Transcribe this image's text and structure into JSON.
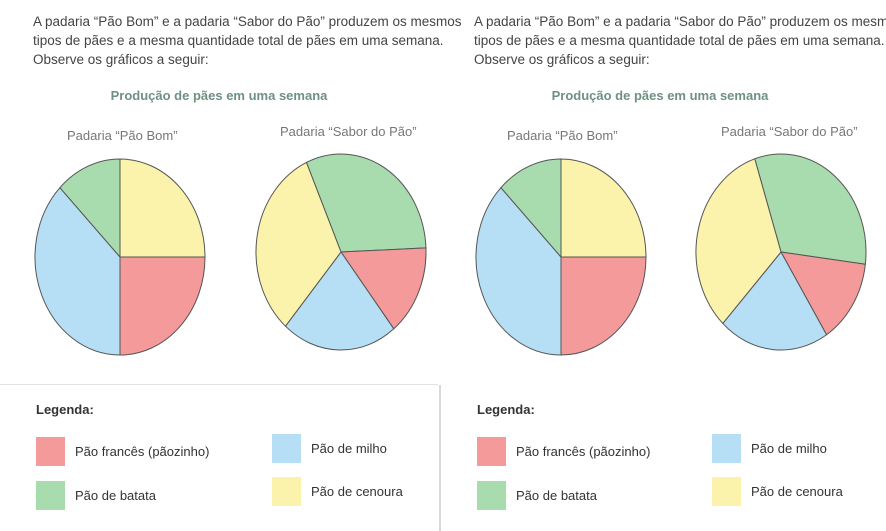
{
  "intro": {
    "line1": "A padaria “Pão Bom” e a padaria “Sabor do Pão” produzem os mesmos",
    "line2": "tipos de pães e a mesma quantidade total de pães em uma semana.",
    "line3": "Observe os gráficos a seguir:"
  },
  "legend": {
    "title": "Legenda:",
    "frances": "Pão francês (pãozinho)",
    "milho": "Pão de milho",
    "batata": "Pão de batata",
    "cenoura": "Pão de cenoura"
  },
  "colors": {
    "frances": "#f49a9a",
    "milho": "#b6def4",
    "batata": "#a8dcae",
    "cenoura": "#fbf2ab"
  },
  "chart_data": [
    {
      "type": "pie",
      "title": "Produção de pães em uma semana",
      "pies": [
        {
          "name": "Padaria “Pão Bom”",
          "slices": [
            {
              "category": "Pão de milho",
              "key": "milho",
              "value": 37.5
            },
            {
              "category": "Pão de batata",
              "key": "batata",
              "value": 12.5
            },
            {
              "category": "Pão de cenoura",
              "key": "cenoura",
              "value": 25
            },
            {
              "category": "Pão francês (pãozinho)",
              "key": "frances",
              "value": 25
            }
          ]
        },
        {
          "name": "Padaria “Sabor do Pão”",
          "slices": [
            {
              "category": "Pão de batata",
              "key": "batata",
              "value": 31
            },
            {
              "category": "Pão francês (pãozinho)",
              "key": "frances",
              "value": 15
            },
            {
              "category": "Pão de milho",
              "key": "milho",
              "value": 22
            },
            {
              "category": "Pão de cenoura",
              "key": "cenoura",
              "value": 32
            }
          ]
        }
      ]
    },
    {
      "type": "pie",
      "title": "Produção de pães em uma semana",
      "pies": [
        {
          "name": "Padaria “Pão Bom”",
          "slices": [
            {
              "category": "Pão de milho",
              "key": "milho",
              "value": 37.5
            },
            {
              "category": "Pão de batata",
              "key": "batata",
              "value": 12.5
            },
            {
              "category": "Pão de cenoura",
              "key": "cenoura",
              "value": 25
            },
            {
              "category": "Pão francês (pãozinho)",
              "key": "frances",
              "value": 25
            }
          ]
        },
        {
          "name": "Padaria “Sabor do Pão”",
          "slices": [
            {
              "category": "Pão de batata",
              "key": "batata",
              "value": 32
            },
            {
              "category": "Pão francês (pãozinho)",
              "key": "frances",
              "value": 14
            },
            {
              "category": "Pão de milho",
              "key": "milho",
              "value": 21
            },
            {
              "category": "Pão de cenoura",
              "key": "cenoura",
              "value": 33
            }
          ]
        }
      ]
    }
  ]
}
